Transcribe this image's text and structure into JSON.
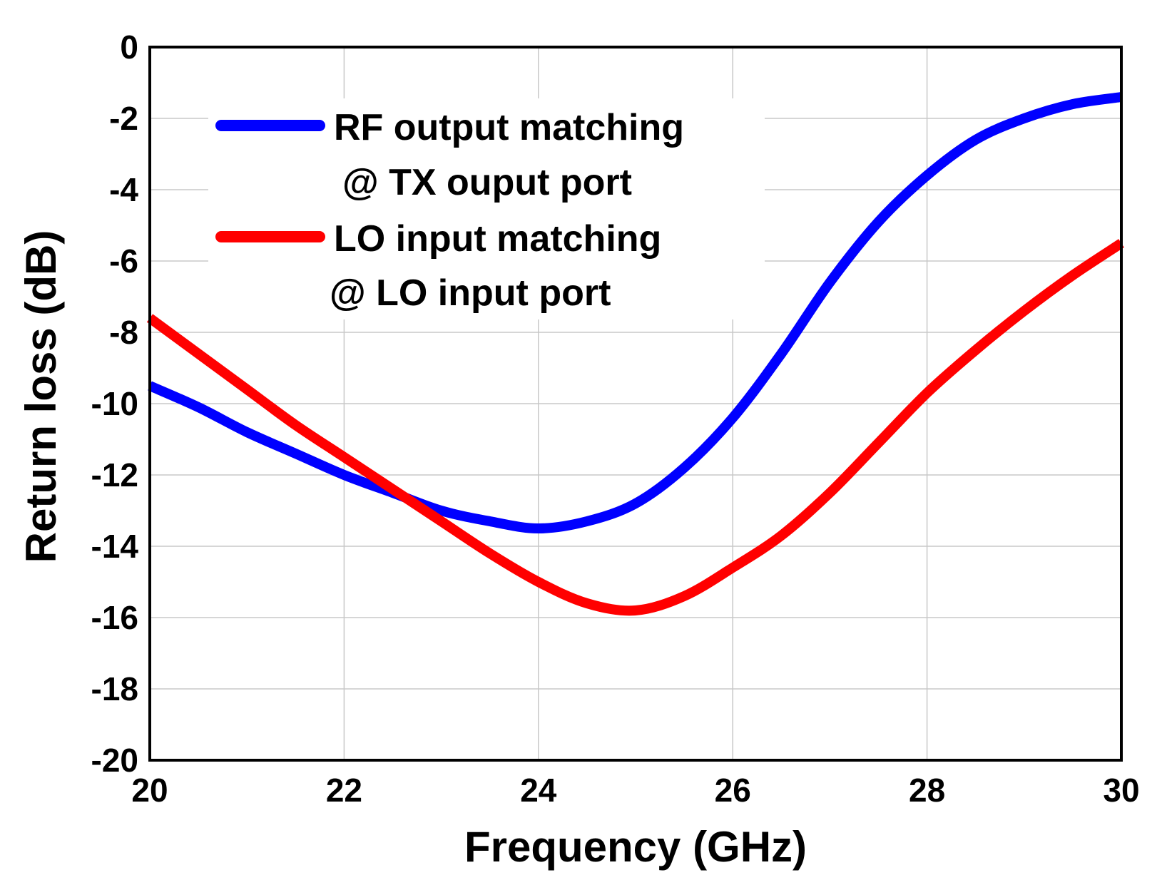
{
  "chart_data": {
    "type": "line",
    "xlabel": "Frequency (GHz)",
    "ylabel": "Return loss (dB)",
    "xlim": [
      20,
      30
    ],
    "ylim": [
      -20,
      0
    ],
    "xticks": [
      20,
      22,
      24,
      26,
      28,
      30
    ],
    "yticks": [
      0,
      -2,
      -4,
      -6,
      -8,
      -10,
      -12,
      -14,
      -16,
      -18,
      -20
    ],
    "grid": true,
    "legend_position": "top-left",
    "series": [
      {
        "name": "RF output matching",
        "name_line2": "@ TX ouput port",
        "color": "#0000ff",
        "x": [
          20,
          20.5,
          21,
          21.5,
          22,
          22.5,
          23,
          23.5,
          24,
          24.5,
          25,
          25.5,
          26,
          26.5,
          27,
          27.5,
          28,
          28.5,
          29,
          29.5,
          30
        ],
        "y": [
          -9.5,
          -10.1,
          -10.8,
          -11.4,
          -12.0,
          -12.5,
          -13.0,
          -13.3,
          -13.5,
          -13.3,
          -12.8,
          -11.8,
          -10.4,
          -8.6,
          -6.6,
          -4.9,
          -3.6,
          -2.6,
          -2.0,
          -1.6,
          -1.4
        ]
      },
      {
        "name": "LO input matching",
        "name_line2": "@ LO input port",
        "color": "#ff0000",
        "x": [
          20,
          20.5,
          21,
          21.5,
          22,
          22.5,
          23,
          23.5,
          24,
          24.5,
          25,
          25.5,
          26,
          26.5,
          27,
          27.5,
          28,
          28.5,
          29,
          29.5,
          30
        ],
        "y": [
          -7.6,
          -8.6,
          -9.6,
          -10.6,
          -11.5,
          -12.4,
          -13.3,
          -14.2,
          -15.0,
          -15.6,
          -15.8,
          -15.4,
          -14.6,
          -13.7,
          -12.5,
          -11.1,
          -9.7,
          -8.5,
          -7.4,
          -6.4,
          -5.5
        ]
      }
    ]
  }
}
